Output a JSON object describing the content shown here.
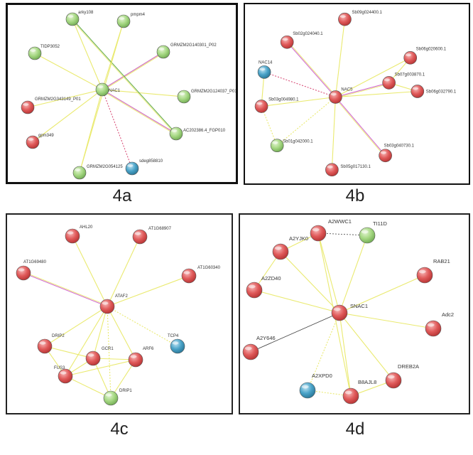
{
  "panels": [
    {
      "id": "4a",
      "caption": "4a",
      "nodes": [
        {
          "id": "arky108",
          "label": "arky108",
          "color": "green"
        },
        {
          "id": "pmpm4",
          "label": "pmpm4",
          "color": "green"
        },
        {
          "id": "TIDP3052",
          "label": "TIDP3052",
          "color": "green"
        },
        {
          "id": "GRM4",
          "label": "GRMZM2G140301_P02",
          "color": "green"
        },
        {
          "id": "NAC1",
          "label": "NAC1",
          "color": "green"
        },
        {
          "id": "GRM5",
          "label": "GRMZM2G124037_P01",
          "color": "green"
        },
        {
          "id": "GRM1",
          "label": "GRMZM2G343149_P01",
          "color": "red"
        },
        {
          "id": "gpm349",
          "label": "gpm349",
          "color": "red"
        },
        {
          "id": "AC2",
          "label": "AC202386.4_FGP010",
          "color": "green"
        },
        {
          "id": "GRM6",
          "label": "GRMZM2G054125",
          "color": "green"
        },
        {
          "id": "sdeg",
          "label": "sdeg858810",
          "color": "blue"
        }
      ],
      "edges": [
        [
          "NAC1",
          "arky108",
          "y"
        ],
        [
          "NAC1",
          "pmpm4",
          "y"
        ],
        [
          "NAC1",
          "TIDP3052",
          "y"
        ],
        [
          "NAC1",
          "GRM4",
          "y"
        ],
        [
          "NAC1",
          "GRM5",
          "y"
        ],
        [
          "NAC1",
          "GRM1",
          "y"
        ],
        [
          "NAC1",
          "gpm349",
          "y"
        ],
        [
          "NAC1",
          "AC2",
          "y"
        ],
        [
          "NAC1",
          "GRM6",
          "y"
        ],
        [
          "NAC1",
          "sdeg",
          "pd"
        ],
        [
          "NAC1",
          "GRM4",
          "p"
        ],
        [
          "NAC1",
          "AC2",
          "p"
        ],
        [
          "arky108",
          "AC2",
          "g"
        ],
        [
          "pmpm4",
          "GRM6",
          "y"
        ]
      ]
    },
    {
      "id": "4b",
      "caption": "4b",
      "nodes": [
        {
          "id": "Sb09",
          "label": "Sb09g024400.1",
          "color": "red"
        },
        {
          "id": "Sb02",
          "label": "Sb02g024040.1",
          "color": "red"
        },
        {
          "id": "Sb06a",
          "label": "Sb06g020600.1",
          "color": "red"
        },
        {
          "id": "NAC4",
          "label": "NAC14",
          "color": "blue"
        },
        {
          "id": "Sb07",
          "label": "Sb07g003870.1",
          "color": "red"
        },
        {
          "id": "NAC5",
          "label": "NAC5",
          "color": "red"
        },
        {
          "id": "Sb06b",
          "label": "Sb06g032790.1",
          "color": "red"
        },
        {
          "id": "Sb03a",
          "label": "Sb03g004980.1",
          "color": "red"
        },
        {
          "id": "Sb01",
          "label": "Sb01g042000.1",
          "color": "green"
        },
        {
          "id": "Sb03b",
          "label": "Sb03g040730.1",
          "color": "red"
        },
        {
          "id": "Sb05",
          "label": "Sb05g017130.1",
          "color": "red"
        }
      ],
      "edges": [
        [
          "NAC5",
          "Sb09",
          "y"
        ],
        [
          "NAC5",
          "Sb02",
          "p"
        ],
        [
          "NAC5",
          "Sb06a",
          "y"
        ],
        [
          "NAC5",
          "NAC4",
          "pd"
        ],
        [
          "NAC5",
          "Sb07",
          "p"
        ],
        [
          "NAC5",
          "Sb06b",
          "y"
        ],
        [
          "NAC5",
          "Sb03a",
          "y"
        ],
        [
          "NAC5",
          "Sb01",
          "yd"
        ],
        [
          "NAC5",
          "Sb03b",
          "p"
        ],
        [
          "NAC5",
          "Sb05",
          "y"
        ],
        [
          "Sb07",
          "Sb06b",
          "y"
        ],
        [
          "Sb06a",
          "Sb07",
          "y"
        ],
        [
          "Sb03a",
          "Sb01",
          "yd"
        ],
        [
          "NAC4",
          "Sb03a",
          "y"
        ]
      ]
    },
    {
      "id": "4c",
      "caption": "4c",
      "nodes": [
        {
          "id": "AHL20",
          "label": "AHL20",
          "color": "red"
        },
        {
          "id": "AT1G68907",
          "label": "AT1G68907",
          "color": "red"
        },
        {
          "id": "AT1G69480",
          "label": "AT1G69480",
          "color": "red"
        },
        {
          "id": "AT1G60340",
          "label": "AT1G60340",
          "color": "red"
        },
        {
          "id": "ATAF2",
          "label": "ATAF2",
          "color": "red"
        },
        {
          "id": "TCP4",
          "label": "TCP4",
          "color": "blue"
        },
        {
          "id": "DRIP2",
          "label": "DRIP2",
          "color": "red"
        },
        {
          "id": "GCR1",
          "label": "GCR1",
          "color": "red"
        },
        {
          "id": "ARF6",
          "label": "ARF6",
          "color": "red"
        },
        {
          "id": "FUS3",
          "label": "FUS3",
          "color": "red"
        },
        {
          "id": "DRIP1",
          "label": "DRIP1",
          "color": "green"
        }
      ],
      "edges": [
        [
          "ATAF2",
          "AHL20",
          "y"
        ],
        [
          "ATAF2",
          "AT1G68907",
          "y"
        ],
        [
          "ATAF2",
          "AT1G69480",
          "p"
        ],
        [
          "ATAF2",
          "AT1G60340",
          "y"
        ],
        [
          "ATAF2",
          "TCP4",
          "yd"
        ],
        [
          "ATAF2",
          "DRIP2",
          "y"
        ],
        [
          "ATAF2",
          "GCR1",
          "y"
        ],
        [
          "ATAF2",
          "ARF6",
          "y"
        ],
        [
          "ATAF2",
          "FUS3",
          "y"
        ],
        [
          "ATAF2",
          "DRIP1",
          "yd"
        ],
        [
          "DRIP2",
          "GCR1",
          "y"
        ],
        [
          "DRIP2",
          "FUS3",
          "y"
        ],
        [
          "GCR1",
          "ARF6",
          "y"
        ],
        [
          "FUS3",
          "GCR1",
          "y"
        ],
        [
          "FUS3",
          "DRIP1",
          "y"
        ],
        [
          "ARF6",
          "DRIP1",
          "y"
        ],
        [
          "GCR1",
          "DRIP1",
          "y"
        ],
        [
          "FUS3",
          "ARF6",
          "y"
        ]
      ]
    },
    {
      "id": "4d",
      "caption": "4d",
      "nodes": [
        {
          "id": "A2WWC1",
          "label": "A2WWC1",
          "color": "red"
        },
        {
          "id": "TI11D",
          "label": "TI11D",
          "color": "green"
        },
        {
          "id": "A2YJK0",
          "label": "A2YJK0",
          "color": "red"
        },
        {
          "id": "RAB21",
          "label": "RAB21",
          "color": "red"
        },
        {
          "id": "A2ZD40",
          "label": "A2ZD40",
          "color": "red"
        },
        {
          "id": "SNAC1",
          "label": "SNAC1",
          "color": "red"
        },
        {
          "id": "Adc2",
          "label": "Adc2",
          "color": "red"
        },
        {
          "id": "A2Y646",
          "label": "A2Y646",
          "color": "red"
        },
        {
          "id": "DREB2A",
          "label": "DREB2A",
          "color": "red"
        },
        {
          "id": "A2XPD0",
          "label": "A2XPD0",
          "color": "blue"
        },
        {
          "id": "B8AJL8",
          "label": "B8AJL8",
          "color": "red"
        }
      ],
      "edges": [
        [
          "SNAC1",
          "A2WWC1",
          "y"
        ],
        [
          "SNAC1",
          "TI11D",
          "y"
        ],
        [
          "SNAC1",
          "A2YJK0",
          "y"
        ],
        [
          "SNAC1",
          "RAB21",
          "y"
        ],
        [
          "SNAC1",
          "A2ZD40",
          "y"
        ],
        [
          "SNAC1",
          "Adc2",
          "y"
        ],
        [
          "SNAC1",
          "A2Y646",
          "k"
        ],
        [
          "SNAC1",
          "DREB2A",
          "y"
        ],
        [
          "SNAC1",
          "A2XPD0",
          "yd"
        ],
        [
          "SNAC1",
          "B8AJL8",
          "y"
        ],
        [
          "A2WWC1",
          "TI11D",
          "kd"
        ],
        [
          "A2YJK0",
          "A2WWC1",
          "y"
        ],
        [
          "A2YJK0",
          "A2ZD40",
          "y"
        ],
        [
          "B8AJL8",
          "DREB2A",
          "y"
        ],
        [
          "A2XPD0",
          "B8AJL8",
          "yd"
        ],
        [
          "A2WWC1",
          "B8AJL8",
          "y"
        ]
      ]
    }
  ],
  "colors": {
    "red": "#e05a5a",
    "green": "#a6d883",
    "blue": "#4aa3c8",
    "edge_yellow": "#eaea70",
    "edge_pink": "#d26cd2",
    "edge_green": "#5fa84a",
    "edge_dark": "#444444",
    "edge_red_dotted": "#d9517a"
  }
}
